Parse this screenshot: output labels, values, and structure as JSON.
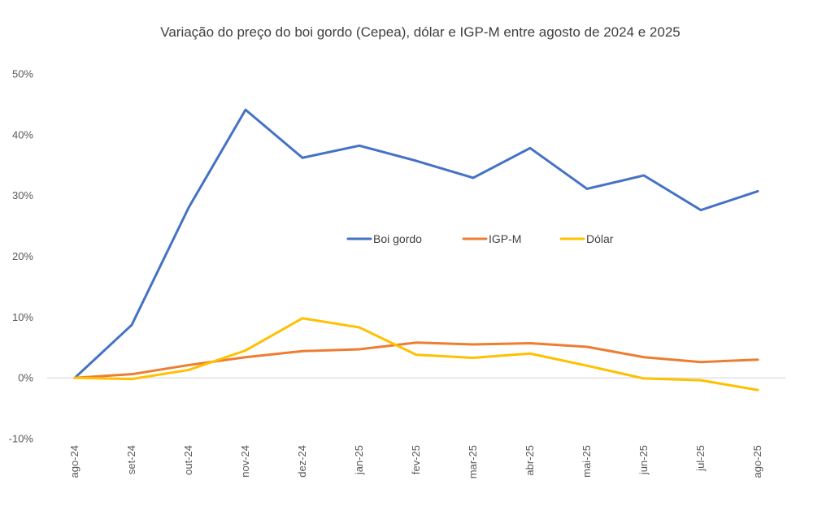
{
  "chart_data": {
    "type": "line",
    "title": "Variação do preço do boi gordo (Cepea), dólar e IGP-M entre agosto de 2024 e 2025",
    "xlabel": "",
    "ylabel": "",
    "categories": [
      "ago-24",
      "set-24",
      "out-24",
      "nov-24",
      "dez-24",
      "jan-25",
      "fev-25",
      "mar-25",
      "abr-25",
      "mai-25",
      "jun-25",
      "jul-25",
      "ago-25"
    ],
    "ylim": [
      -10,
      50
    ],
    "yticks": [
      -10,
      0,
      10,
      20,
      30,
      40,
      50
    ],
    "ytick_labels": [
      "-10%",
      "0%",
      "10%",
      "20%",
      "30%",
      "40%",
      "50%"
    ],
    "grid": false,
    "legend_position": "center",
    "series": [
      {
        "name": "Boi gordo",
        "color": "#4472C4",
        "values": [
          0,
          8.7,
          28.0,
          44.1,
          36.2,
          38.2,
          35.7,
          32.9,
          37.8,
          31.1,
          33.3,
          27.6,
          30.7
        ]
      },
      {
        "name": "IGP-M",
        "color": "#ED7D31",
        "values": [
          0,
          0.6,
          2.1,
          3.4,
          4.4,
          4.7,
          5.8,
          5.5,
          5.7,
          5.1,
          3.4,
          2.6,
          3.0
        ]
      },
      {
        "name": "Dólar",
        "color": "#FFC000",
        "values": [
          0,
          -0.2,
          1.3,
          4.5,
          9.8,
          8.3,
          3.8,
          3.3,
          4.0,
          2.0,
          -0.1,
          -0.4,
          -2.0
        ]
      }
    ]
  }
}
